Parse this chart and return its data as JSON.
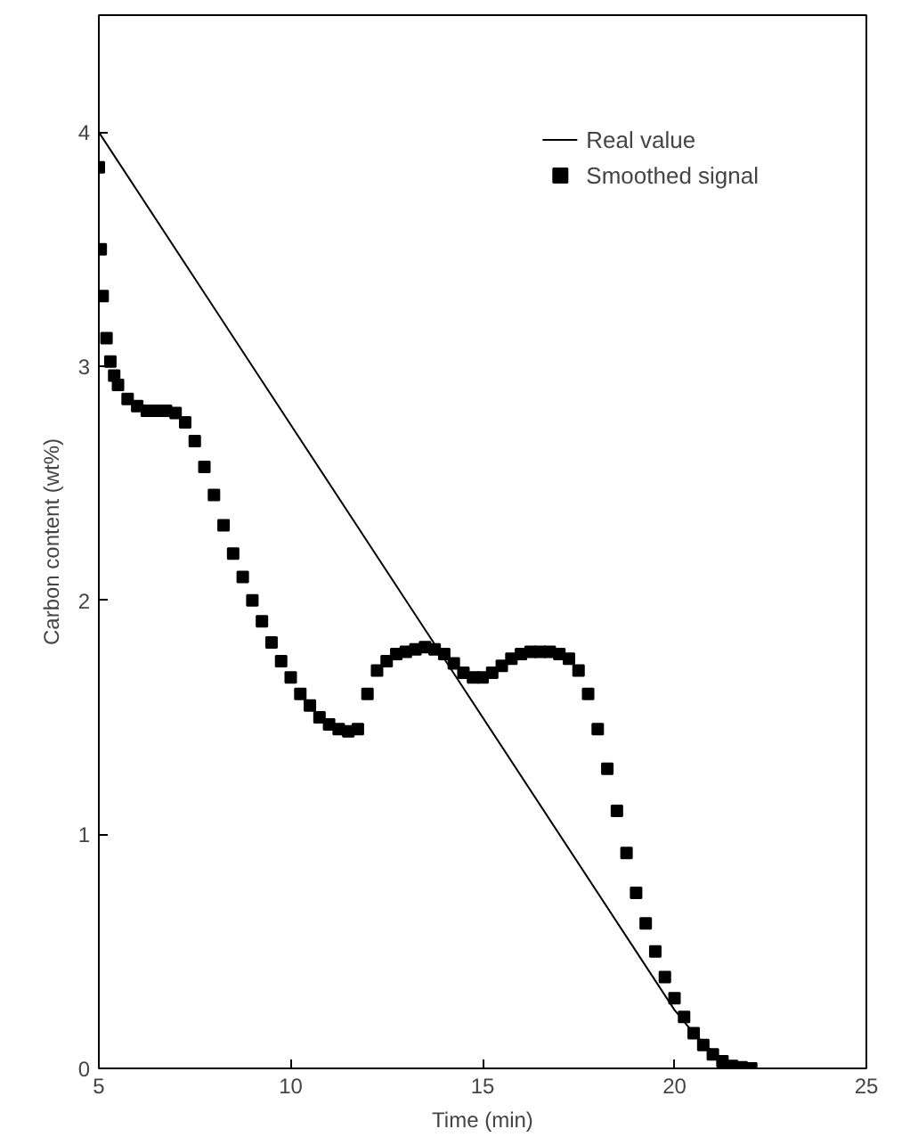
{
  "chart_data": {
    "type": "line",
    "xlabel": "Time (min)",
    "ylabel": "Carbon content (wt%)",
    "xlim": [
      5,
      25
    ],
    "ylim": [
      0,
      4.5
    ],
    "xticks": [
      5,
      10,
      15,
      20,
      25
    ],
    "yticks": [
      0,
      1,
      2,
      3,
      4
    ],
    "grid": false,
    "legend": "top right",
    "series": [
      {
        "name": "Real value",
        "color": "#000000",
        "line_style": "solid",
        "marker": "none",
        "x": [
          5,
          20,
          20.5,
          21,
          21.4,
          21.7
        ],
        "values": [
          4,
          0.25,
          0.15,
          0.07,
          0.02,
          0
        ]
      },
      {
        "name": "Smoothed signal",
        "type": "scatter",
        "color": "#000000",
        "marker": "square",
        "x": [
          5,
          5.05,
          5.1,
          5.2,
          5.3,
          5.4,
          5.5,
          5.75,
          6,
          6.25,
          6.5,
          6.75,
          7,
          7.25,
          7.5,
          7.75,
          8,
          8.25,
          8.5,
          8.75,
          9,
          9.25,
          9.5,
          9.75,
          10,
          10.25,
          10.5,
          10.75,
          11,
          11.25,
          11.5,
          11.75,
          12,
          12.25,
          12.5,
          12.75,
          13,
          13.25,
          13.5,
          13.75,
          14,
          14.25,
          14.5,
          14.75,
          15,
          15.25,
          15.5,
          15.75,
          16,
          16.25,
          16.5,
          16.75,
          17,
          17.25,
          17.5,
          17.75,
          18,
          18.25,
          18.5,
          18.75,
          19,
          19.25,
          19.5,
          19.75,
          20,
          20.25,
          20.5,
          20.75,
          21,
          21.25,
          21.5,
          21.75,
          22
        ],
        "values": [
          3.85,
          3.5,
          3.3,
          3.12,
          3.02,
          2.96,
          2.92,
          2.86,
          2.83,
          2.81,
          2.81,
          2.81,
          2.8,
          2.76,
          2.68,
          2.57,
          2.45,
          2.32,
          2.2,
          2.1,
          2.0,
          1.91,
          1.82,
          1.74,
          1.67,
          1.6,
          1.55,
          1.5,
          1.47,
          1.45,
          1.44,
          1.45,
          1.6,
          1.7,
          1.74,
          1.77,
          1.78,
          1.79,
          1.8,
          1.79,
          1.77,
          1.73,
          1.69,
          1.67,
          1.67,
          1.69,
          1.72,
          1.75,
          1.77,
          1.78,
          1.78,
          1.78,
          1.77,
          1.75,
          1.7,
          1.6,
          1.45,
          1.28,
          1.1,
          0.92,
          0.75,
          0.62,
          0.5,
          0.39,
          0.3,
          0.22,
          0.15,
          0.1,
          0.06,
          0.03,
          0.01,
          0.005,
          0
        ]
      }
    ]
  }
}
